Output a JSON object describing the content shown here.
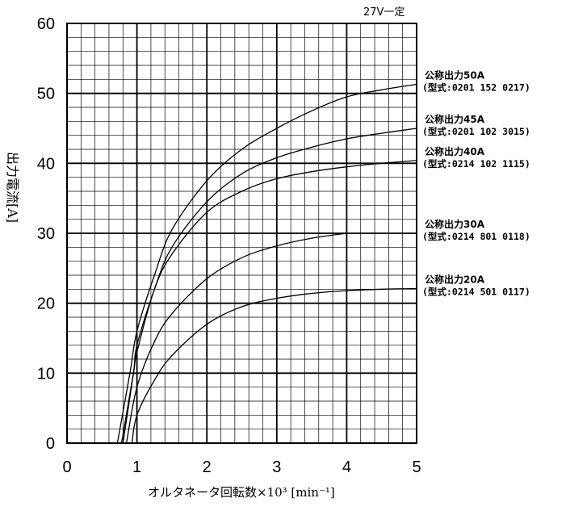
{
  "chart_data": {
    "type": "line",
    "note": "27V一定",
    "xlabel": "オルタネータ回転数×10³ [min⁻¹]",
    "ylabel": "出力電流[A]",
    "xlim": [
      0,
      5
    ],
    "ylim": [
      0,
      60
    ],
    "x_ticks": [
      "0",
      "1",
      "2",
      "3",
      "4",
      "5"
    ],
    "y_ticks": [
      "0",
      "10",
      "20",
      "30",
      "40",
      "50",
      "60"
    ],
    "grid": true,
    "series": [
      {
        "name": "公称出力50A",
        "model": "(型式:0201 152 0217)",
        "x": [
          0.72,
          0.9,
          1.0,
          1.25,
          1.5,
          2.0,
          2.5,
          3.0,
          3.5,
          4.0,
          4.5,
          5.0
        ],
        "y": [
          0,
          10,
          16,
          24,
          30.5,
          37.5,
          42,
          45,
          47.5,
          49.5,
          50.5,
          51.3
        ]
      },
      {
        "name": "公称出力45A",
        "model": "(型式:0201 102 3015)",
        "x": [
          0.8,
          0.95,
          1.0,
          1.25,
          1.5,
          2.0,
          2.5,
          3.0,
          3.5,
          4.0,
          4.5,
          5.0
        ],
        "y": [
          0,
          10,
          14,
          22,
          28,
          34.5,
          38.5,
          40.8,
          42.3,
          43.5,
          44.3,
          45
        ]
      },
      {
        "name": "公称出力40A",
        "model": "(型式:0214 102 1115)",
        "x": [
          0.78,
          0.95,
          1.0,
          1.25,
          1.5,
          2.0,
          2.5,
          3.0,
          3.5,
          4.0,
          4.5,
          5.0
        ],
        "y": [
          0,
          10,
          13,
          22,
          27,
          33,
          36,
          37.8,
          38.8,
          39.5,
          40,
          40.4
        ]
      },
      {
        "name": "公称出力30A",
        "model": "(型式:0214 801 0118)",
        "x": [
          0.85,
          1.0,
          1.25,
          1.5,
          2.0,
          2.5,
          3.0,
          3.5,
          4.0
        ],
        "y": [
          0,
          8,
          14.5,
          18.5,
          23.5,
          26.5,
          28.2,
          29.3,
          30
        ]
      },
      {
        "name": "公称出力20A",
        "model": "(型式:0214 501 0117)",
        "x": [
          0.93,
          1.0,
          1.25,
          1.5,
          2.0,
          2.5,
          3.0,
          3.5,
          4.0,
          4.5,
          5.0
        ],
        "y": [
          0,
          4,
          9,
          12.5,
          17,
          19.5,
          20.7,
          21.4,
          21.8,
          22,
          22.1
        ]
      }
    ]
  }
}
